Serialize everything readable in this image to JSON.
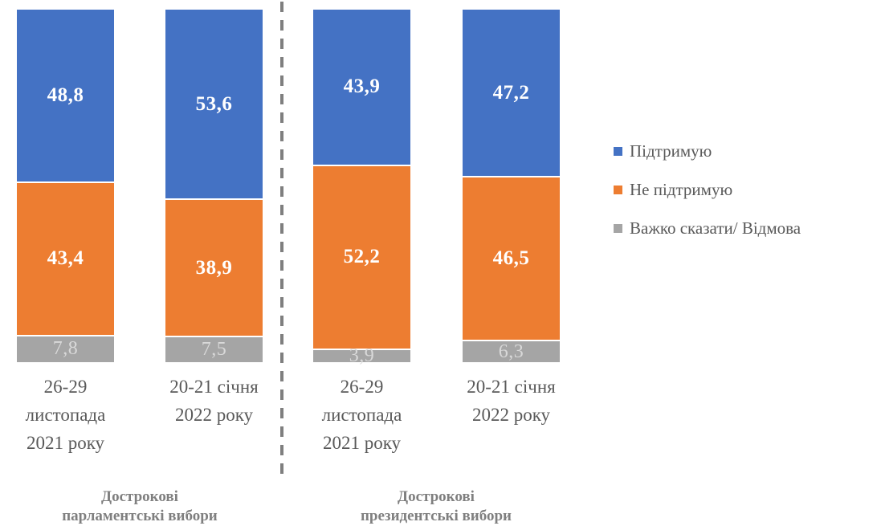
{
  "chart_data": {
    "type": "bar",
    "stacked": true,
    "unit": "percent",
    "ylim": [
      0,
      100
    ],
    "grid": false,
    "legend_position": "right",
    "categories": [
      {
        "lines": [
          "26-29",
          "листопада",
          "2021 року"
        ]
      },
      {
        "lines": [
          "20-21 січня",
          "2022 року"
        ]
      },
      {
        "lines": [
          "26-29",
          "листопада",
          "2021 року"
        ]
      },
      {
        "lines": [
          "20-21 січня",
          "2022 року"
        ]
      }
    ],
    "series": [
      {
        "name": "Підтримую",
        "color": "#4472C4",
        "label_color": "#FFFFFF",
        "values": [
          48.8,
          53.6,
          43.9,
          47.2
        ],
        "labels": [
          "48,8",
          "53,6",
          "43,9",
          "47,2"
        ]
      },
      {
        "name": "Не підтримую",
        "color": "#ED7D31",
        "label_color": "#FFFFFF",
        "values": [
          43.4,
          38.9,
          52.2,
          46.5
        ],
        "labels": [
          "43,4",
          "38,9",
          "52,2",
          "46,5"
        ]
      },
      {
        "name": "Важко сказати/ Відмова",
        "color": "#A5A5A5",
        "label_color": "#D9D9D9",
        "values": [
          7.8,
          7.5,
          3.9,
          6.3
        ],
        "labels": [
          "7,8",
          "7,5",
          "3,9",
          "6,3"
        ]
      }
    ],
    "groups": [
      {
        "label_lines": [
          "Дострокові",
          "парламентські вибори"
        ],
        "bar_indexes": [
          0,
          1
        ]
      },
      {
        "label_lines": [
          "Дострокові",
          "президентські вибори"
        ],
        "bar_indexes": [
          2,
          3
        ]
      }
    ]
  },
  "colors": {
    "background": "#FFFFFF",
    "divider": "#7F7F7F",
    "category_text": "#595959",
    "group_text": "#7F7F7F",
    "legend_text": "#595959",
    "segment_separator": "#FFFFFF"
  }
}
